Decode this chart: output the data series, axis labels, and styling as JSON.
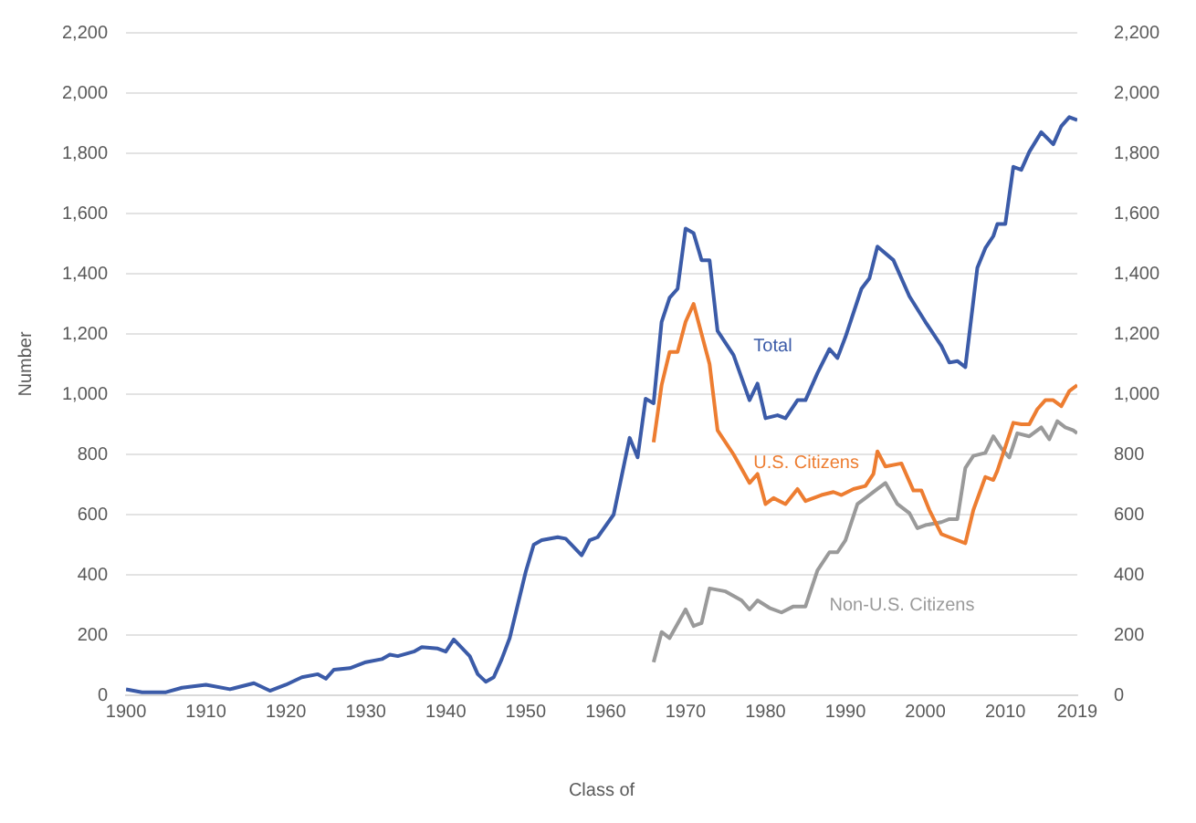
{
  "chart_data": {
    "type": "line",
    "xlabel": "Class of",
    "ylabel": "Number",
    "xlim": [
      1900,
      2019
    ],
    "xticks": [
      1900,
      1910,
      1920,
      1930,
      1940,
      1950,
      1960,
      1970,
      1980,
      1990,
      2000,
      2010,
      2019
    ],
    "ylim": [
      0,
      2200
    ],
    "yticks": [
      {
        "value": 0,
        "label": "0"
      },
      {
        "value": 200,
        "label": "200"
      },
      {
        "value": 400,
        "label": "400"
      },
      {
        "value": 600,
        "label": "600"
      },
      {
        "value": 800,
        "label": "800"
      },
      {
        "value": 1000,
        "label": "1,000"
      },
      {
        "value": 1200,
        "label": "1,200"
      },
      {
        "value": 1400,
        "label": "1,400"
      },
      {
        "value": 1600,
        "label": "1,600"
      },
      {
        "value": 1800,
        "label": "1,800"
      },
      {
        "value": 2000,
        "label": "2,000"
      },
      {
        "value": 2200,
        "label": "2,200"
      }
    ],
    "y2lim": [
      0,
      2200
    ],
    "y2ticks": [
      {
        "value": 0,
        "label": "0"
      },
      {
        "value": 200,
        "label": "200"
      },
      {
        "value": 400,
        "label": "400"
      },
      {
        "value": 600,
        "label": "600"
      },
      {
        "value": 800,
        "label": "800"
      },
      {
        "value": 1000,
        "label": "1,000"
      },
      {
        "value": 1200,
        "label": "1,200"
      },
      {
        "value": 1400,
        "label": "1,400"
      },
      {
        "value": 1600,
        "label": "1,600"
      },
      {
        "value": 1800,
        "label": "1,800"
      },
      {
        "value": 2000,
        "label": "2,000"
      },
      {
        "value": 2200,
        "label": "2,200"
      }
    ],
    "grid": "y",
    "legend": false,
    "marker": "none",
    "line_style": "solid",
    "series": [
      {
        "name": "Total",
        "color": "#3b5ba8",
        "x": [
          1900,
          1902,
          1905,
          1907,
          1910,
          1913,
          1916,
          1918,
          1920,
          1922,
          1924,
          1925,
          1926,
          1928,
          1930,
          1932,
          1933,
          1934,
          1936,
          1937,
          1939,
          1940,
          1941,
          1943,
          1944,
          1945,
          1946,
          1947,
          1948,
          1949,
          1950,
          1951,
          1952,
          1954,
          1955,
          1957,
          1958,
          1959,
          1961,
          1963,
          1964,
          1965,
          1966,
          1967,
          1968,
          1969,
          1970,
          1971,
          1972,
          1973,
          1974,
          1976,
          1978,
          1979,
          1980,
          1981.5,
          1982.5,
          1984,
          1985,
          1986.5,
          1988,
          1989,
          1990,
          1992,
          1993,
          1994,
          1996,
          1998,
          2000,
          2002,
          2003,
          2004,
          2005,
          2006.5,
          2007.5,
          2008.5,
          2009,
          2010,
          2011,
          2012,
          2013,
          2014.5,
          2016,
          2017,
          2018,
          2019
        ],
        "values": [
          20,
          10,
          10,
          25,
          35,
          20,
          40,
          15,
          35,
          60,
          70,
          55,
          85,
          90,
          110,
          120,
          135,
          130,
          145,
          160,
          155,
          145,
          185,
          130,
          70,
          45,
          60,
          120,
          190,
          300,
          410,
          500,
          515,
          525,
          520,
          465,
          515,
          525,
          600,
          855,
          790,
          985,
          970,
          1240,
          1320,
          1350,
          1550,
          1535,
          1445,
          1445,
          1210,
          1130,
          980,
          1035,
          920,
          930,
          920,
          980,
          980,
          1070,
          1150,
          1120,
          1190,
          1350,
          1385,
          1490,
          1445,
          1325,
          1240,
          1160,
          1105,
          1110,
          1090,
          1420,
          1485,
          1525,
          1565,
          1565,
          1755,
          1745,
          1805,
          1870,
          1830,
          1890,
          1920,
          1910
        ]
      },
      {
        "name": "U.S. Citizens",
        "color": "#ed7d31",
        "x": [
          1966,
          1967,
          1968,
          1969,
          1970,
          1971,
          1972,
          1973,
          1974,
          1976,
          1978,
          1979,
          1980,
          1981,
          1982.5,
          1984,
          1985,
          1987,
          1988.5,
          1989.5,
          1991,
          1992.5,
          1993.5,
          1994,
          1995,
          1997,
          1998.5,
          1999.5,
          2000.5,
          2002,
          2003,
          2005,
          2006,
          2007.5,
          2008.5,
          2009,
          2011,
          2012,
          2013,
          2014,
          2015,
          2016,
          2017,
          2018,
          2019
        ],
        "values": [
          840,
          1030,
          1140,
          1140,
          1240,
          1300,
          1200,
          1100,
          880,
          800,
          705,
          735,
          635,
          655,
          635,
          685,
          645,
          665,
          675,
          665,
          685,
          695,
          735,
          810,
          760,
          770,
          680,
          680,
          615,
          535,
          525,
          505,
          615,
          725,
          715,
          745,
          905,
          900,
          900,
          950,
          980,
          980,
          960,
          1010,
          1030
        ]
      },
      {
        "name": "Non-U.S. Citizens",
        "color": "#9a9a9a",
        "x": [
          1966,
          1967,
          1968,
          1970,
          1971,
          1972,
          1973,
          1975,
          1977,
          1978,
          1979,
          1980.5,
          1982,
          1983.5,
          1985,
          1985.5,
          1986.5,
          1988,
          1989,
          1990,
          1991.5,
          1992.5,
          1994,
          1995,
          1996.5,
          1998,
          1999,
          2000,
          2002,
          2003,
          2004,
          2005,
          2006,
          2007.5,
          2008.5,
          2009.5,
          2010.5,
          2011.5,
          2013,
          2014.5,
          2015.5,
          2016.5,
          2017.5,
          2018.5,
          2019
        ],
        "values": [
          110,
          210,
          190,
          285,
          230,
          240,
          355,
          345,
          315,
          285,
          315,
          290,
          275,
          295,
          295,
          335,
          415,
          475,
          475,
          515,
          635,
          655,
          685,
          705,
          635,
          605,
          555,
          565,
          575,
          585,
          585,
          755,
          795,
          805,
          860,
          820,
          790,
          870,
          860,
          890,
          850,
          910,
          890,
          880,
          870
        ]
      }
    ]
  }
}
